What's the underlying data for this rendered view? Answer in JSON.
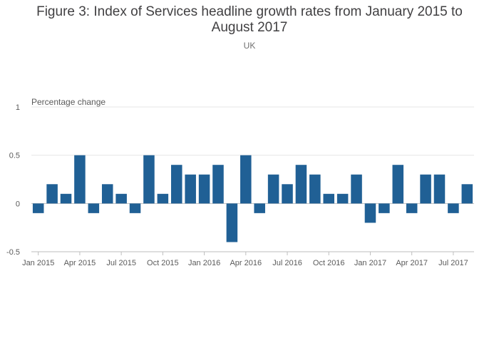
{
  "title": "Figure 3: Index of Services headline growth rates from January 2015 to August 2017",
  "subtitle": "UK",
  "colors": {
    "bar": "#206095",
    "grid": "#e6e6e6",
    "axis": "#bebebe"
  },
  "chart_data": {
    "type": "bar",
    "title": "Figure 3: Index of Services headline growth rates from January 2015 to August 2017",
    "subtitle": "UK",
    "ylabel": "Percentage change",
    "xlabel": "",
    "ylim": [
      -0.5,
      1
    ],
    "yticks": [
      -0.5,
      0,
      0.5,
      1
    ],
    "ytick_labels": [
      "-0.5",
      "0",
      "0.5",
      "1"
    ],
    "grid": true,
    "legend": "none",
    "categories": [
      "Jan 2015",
      "Feb 2015",
      "Mar 2015",
      "Apr 2015",
      "May 2015",
      "Jun 2015",
      "Jul 2015",
      "Aug 2015",
      "Sep 2015",
      "Oct 2015",
      "Nov 2015",
      "Dec 2015",
      "Jan 2016",
      "Feb 2016",
      "Mar 2016",
      "Apr 2016",
      "May 2016",
      "Jun 2016",
      "Jul 2016",
      "Aug 2016",
      "Sep 2016",
      "Oct 2016",
      "Nov 2016",
      "Dec 2016",
      "Jan 2017",
      "Feb 2017",
      "Mar 2017",
      "Apr 2017",
      "May 2017",
      "Jun 2017",
      "Jul 2017",
      "Aug 2017"
    ],
    "xtick_labels": [
      {
        "category": "Jan 2015",
        "label": "Jan 2015"
      },
      {
        "category": "Apr 2015",
        "label": "Apr 2015"
      },
      {
        "category": "Jul 2015",
        "label": "Jul 2015"
      },
      {
        "category": "Oct 2015",
        "label": "Oct 2015"
      },
      {
        "category": "Jan 2016",
        "label": "Jan 2016"
      },
      {
        "category": "Apr 2016",
        "label": "Apr 2016"
      },
      {
        "category": "Jul 2016",
        "label": "Jul 2016"
      },
      {
        "category": "Oct 2016",
        "label": "Oct 2016"
      },
      {
        "category": "Jan 2017",
        "label": "Jan 2017"
      },
      {
        "category": "Apr 2017",
        "label": "Apr 2017"
      },
      {
        "category": "Jul 2017",
        "label": "Jul 2017"
      }
    ],
    "values": [
      -0.1,
      0.2,
      0.1,
      0.5,
      -0.1,
      0.2,
      0.1,
      -0.1,
      0.5,
      0.1,
      0.4,
      0.3,
      0.3,
      0.4,
      -0.4,
      0.5,
      -0.1,
      0.3,
      0.2,
      0.4,
      0.3,
      0.1,
      0.1,
      0.3,
      -0.2,
      -0.1,
      0.4,
      -0.1,
      0.3,
      0.3,
      -0.1,
      0.2
    ]
  }
}
